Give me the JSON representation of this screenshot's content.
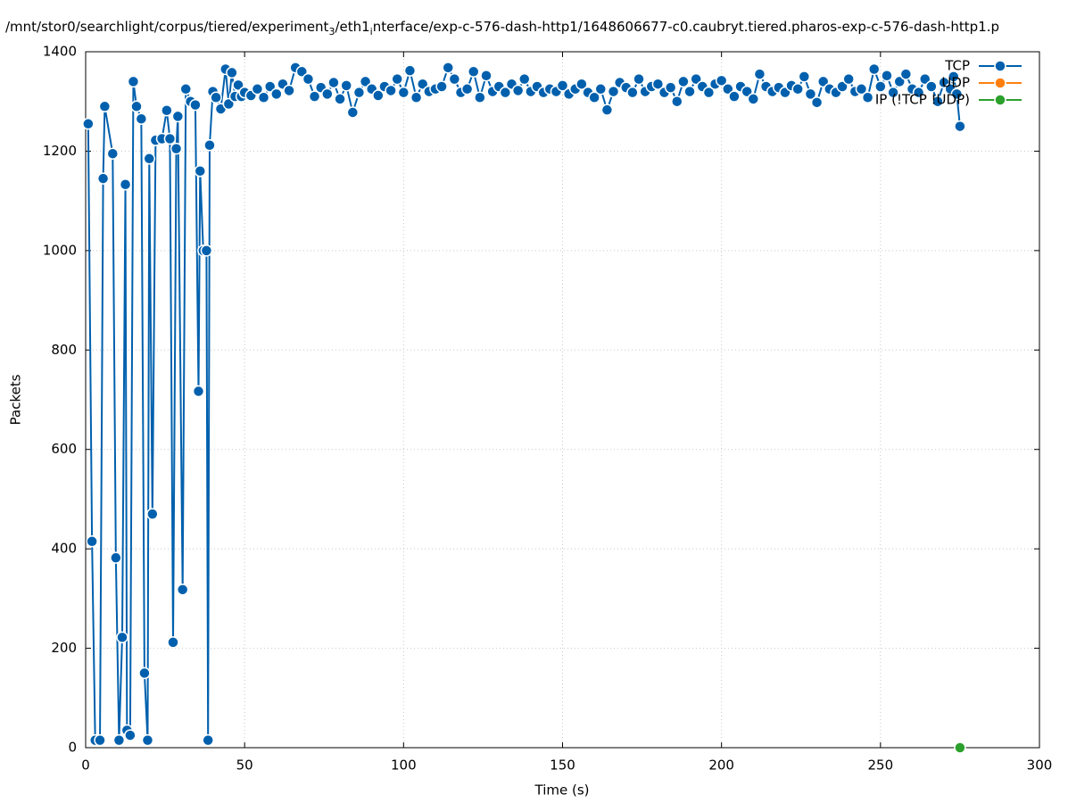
{
  "chart_data": {
    "type": "line",
    "title_parts": [
      "/mnt/stor0/searchlight/corpus/tiered/experiment",
      "3",
      "/eth1",
      "i",
      "nterface/exp-c-576-dash-http1/1648606677-c0.caubryt.tiered.pharos-exp-c-576-dash-http1.p"
    ],
    "xlabel": "Time (s)",
    "ylabel": "Packets",
    "xlim": [
      0,
      300
    ],
    "xticks": [
      0,
      50,
      100,
      150,
      200,
      250,
      300
    ],
    "ylim": [
      0,
      1400
    ],
    "yticks": [
      0,
      200,
      400,
      600,
      800,
      1000,
      1200,
      1400
    ],
    "grid": true,
    "legend": "upper right",
    "series": [
      {
        "name": "TCP",
        "color": "#0060ad",
        "x": [
          0.8,
          2,
          3,
          4.5,
          5.5,
          6,
          8.5,
          9.5,
          10.5,
          11.5,
          12.5,
          13,
          14,
          15,
          16,
          17.5,
          18.5,
          19.5,
          20,
          21,
          22,
          24,
          25.5,
          26.5,
          27.5,
          28.5,
          29,
          30.5,
          31.5,
          33,
          34.5,
          35.5,
          36,
          37,
          38,
          38.5,
          39,
          40,
          41,
          42.5,
          44,
          45,
          46,
          47,
          48,
          49,
          50,
          52,
          54,
          56,
          58,
          60,
          62,
          64,
          66,
          68,
          70,
          72,
          74,
          76,
          78,
          80,
          82,
          84,
          86,
          88,
          90,
          92,
          94,
          96,
          98,
          100,
          102,
          104,
          106,
          108,
          110,
          112,
          114,
          116,
          118,
          120,
          122,
          124,
          126,
          128,
          130,
          132,
          134,
          136,
          138,
          140,
          142,
          144,
          146,
          148,
          150,
          152,
          154,
          156,
          158,
          160,
          162,
          164,
          166,
          168,
          170,
          172,
          174,
          176,
          178,
          180,
          182,
          184,
          186,
          188,
          190,
          192,
          194,
          196,
          198,
          200,
          202,
          204,
          206,
          208,
          210,
          212,
          214,
          216,
          218,
          220,
          222,
          224,
          226,
          228,
          230,
          232,
          234,
          236,
          238,
          240,
          242,
          244,
          246,
          248,
          250,
          252,
          254,
          256,
          258,
          260,
          262,
          264,
          266,
          268,
          270,
          272,
          273,
          274,
          275
        ],
        "values": [
          1255,
          415,
          15,
          15,
          1145,
          1290,
          1195,
          382,
          15,
          222,
          1133,
          35,
          25,
          1340,
          1290,
          1265,
          150,
          15,
          1185,
          470,
          1222,
          1225,
          1282,
          1225,
          212,
          1205,
          1270,
          318,
          1325,
          1300,
          1293,
          717,
          1160,
          1000,
          1000,
          15,
          1212,
          1320,
          1308,
          1285,
          1365,
          1295,
          1358,
          1310,
          1333,
          1310,
          1318,
          1312,
          1325,
          1308,
          1330,
          1315,
          1335,
          1322,
          1368,
          1360,
          1345,
          1310,
          1328,
          1315,
          1338,
          1305,
          1332,
          1278,
          1318,
          1340,
          1325,
          1312,
          1330,
          1322,
          1345,
          1318,
          1362,
          1308,
          1335,
          1320,
          1325,
          1330,
          1368,
          1345,
          1318,
          1325,
          1360,
          1308,
          1352,
          1320,
          1330,
          1318,
          1335,
          1322,
          1345,
          1320,
          1330,
          1318,
          1325,
          1320,
          1332,
          1315,
          1325,
          1335,
          1318,
          1308,
          1325,
          1283,
          1320,
          1338,
          1328,
          1318,
          1345,
          1320,
          1330,
          1335,
          1318,
          1328,
          1300,
          1340,
          1320,
          1345,
          1330,
          1318,
          1335,
          1342,
          1325,
          1310,
          1330,
          1320,
          1305,
          1355,
          1330,
          1320,
          1328,
          1318,
          1332,
          1325,
          1350,
          1315,
          1298,
          1340,
          1325,
          1318,
          1330,
          1345,
          1320,
          1325,
          1308,
          1365,
          1330,
          1352,
          1318,
          1340,
          1355,
          1325,
          1318,
          1345,
          1330,
          1300,
          1338,
          1325,
          1350,
          1315,
          1250
        ]
      },
      {
        "name": "UDP",
        "color": "#ff7f0e",
        "x": [],
        "values": []
      },
      {
        "name": "IP (!TCP  !UDP)",
        "color": "#2ca02c",
        "x": [
          275
        ],
        "values": [
          0
        ]
      }
    ]
  }
}
